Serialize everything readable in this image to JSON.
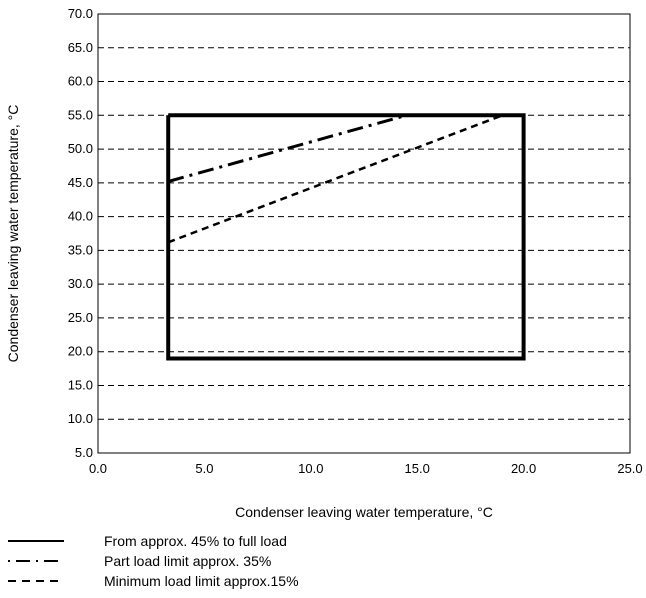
{
  "chart_data": {
    "type": "line",
    "title": "",
    "xlabel": "Condenser leaving water temperature, °C",
    "ylabel": "Condenser leaving water temperature, °C",
    "xlim": [
      0,
      25
    ],
    "ylim": [
      5,
      70
    ],
    "x_ticks": [
      "0.0",
      "5.0",
      "10.0",
      "15.0",
      "20.0",
      "25.0"
    ],
    "y_ticks": [
      "5.0",
      "10.0",
      "15.0",
      "20.0",
      "25.0",
      "30.0",
      "35.0",
      "40.0",
      "45.0",
      "50.0",
      "55.0",
      "60.0",
      "65.0",
      "70.0"
    ],
    "grid": "horizontal dashed",
    "legend_placement": "bottom",
    "series": [
      {
        "name": "From approx. 45% to full load",
        "style": "solid",
        "x": [
          3.3,
          20.0,
          20.0,
          3.3,
          3.3
        ],
        "y": [
          55.0,
          55.0,
          19.0,
          19.0,
          55.0
        ]
      },
      {
        "name": "Part load limit approx. 35%",
        "style": "dash-dot",
        "x": [
          3.3,
          14.5
        ],
        "y": [
          45.2,
          55.0
        ]
      },
      {
        "name": "Minimum load limit approx.15%",
        "style": "dashed",
        "x": [
          3.3,
          19.0
        ],
        "y": [
          36.2,
          55.0
        ]
      }
    ]
  }
}
